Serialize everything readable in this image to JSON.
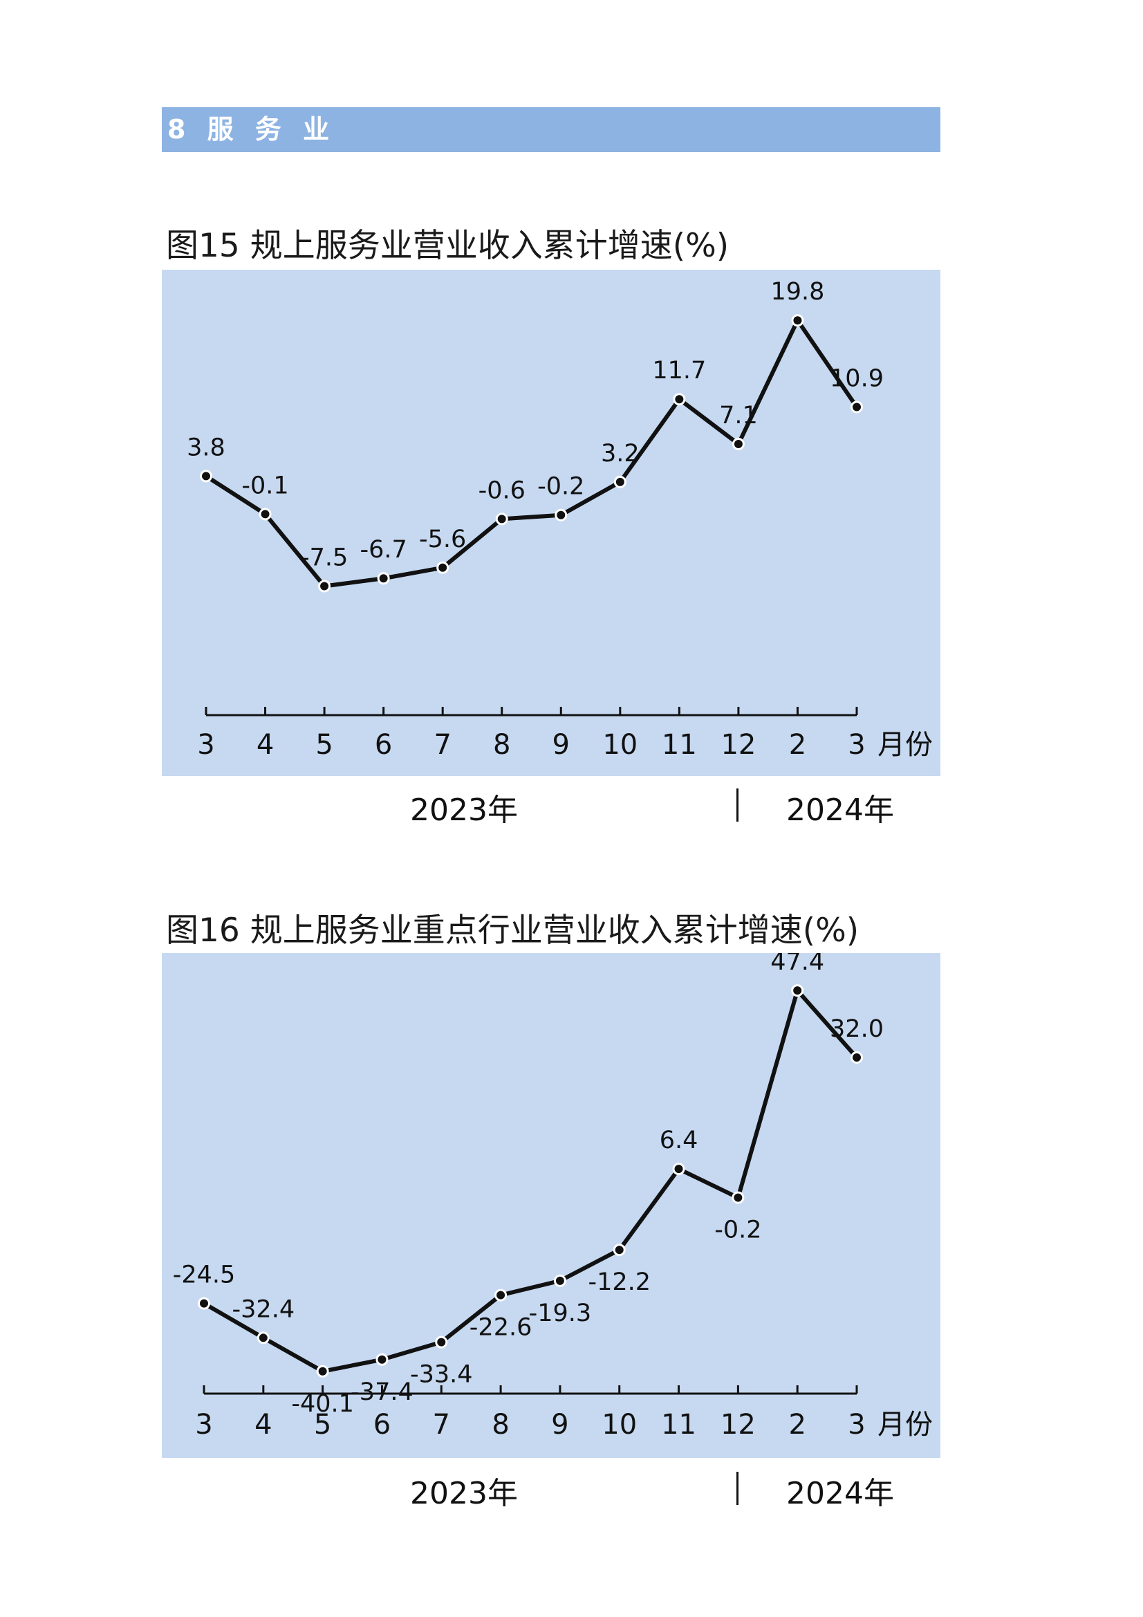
{
  "section": {
    "label": "8  服 务 业"
  },
  "figures": [
    {
      "title": "图15  规上服务业营业收入累计增速(%)",
      "years": {
        "first": "2023年",
        "second": "2024年"
      }
    },
    {
      "title": "图16  规上服务业重点行业营业收入累计增速(%)",
      "years": {
        "first": "2023年",
        "second": "2024年"
      }
    }
  ],
  "chart_data": [
    {
      "type": "line",
      "title": "图15  规上服务业营业收入累计增速(%)",
      "categories": [
        "3",
        "4",
        "5",
        "6",
        "7",
        "8",
        "9",
        "10",
        "11",
        "12",
        "2",
        "3"
      ],
      "x_unit": "月份",
      "values": [
        3.8,
        -0.1,
        -7.5,
        -6.7,
        -5.6,
        -0.6,
        -0.2,
        3.2,
        11.7,
        7.1,
        19.8,
        10.9
      ],
      "value_labels": [
        "3.8",
        "-0.1",
        "-7.5",
        "-6.7",
        "-5.6",
        "-0.6",
        "-0.2",
        "3.2",
        "11.7",
        "7.1",
        "19.8",
        "10.9"
      ],
      "label_position": [
        "above",
        "above",
        "above",
        "above",
        "above",
        "above",
        "above",
        "above",
        "above",
        "above",
        "above",
        "above"
      ],
      "ylim": [
        -27,
        25
      ],
      "grid": false,
      "legend": "none",
      "background_color": "#c6d9f1",
      "line_color": "#111111"
    },
    {
      "type": "line",
      "title": "图16  规上服务业重点行业营业收入累计增速(%)",
      "categories": [
        "3",
        "4",
        "5",
        "6",
        "7",
        "8",
        "9",
        "10",
        "11",
        "12",
        "2",
        "3"
      ],
      "x_unit": "月份",
      "values": [
        -24.5,
        -32.4,
        -40.1,
        -37.4,
        -33.4,
        -22.6,
        -19.3,
        -12.2,
        6.4,
        -0.2,
        47.4,
        32.0
      ],
      "value_labels": [
        "-24.5",
        "-32.4",
        "-40.1",
        "-37.4",
        "-33.4",
        "-22.6",
        "-19.3",
        "-12.2",
        "6.4",
        "-0.2",
        "47.4",
        "32.0"
      ],
      "label_position": [
        "above",
        "above",
        "below",
        "below",
        "below",
        "below",
        "below",
        "below",
        "above",
        "below",
        "above",
        "above"
      ],
      "ylim": [
        -60,
        56
      ],
      "grid": false,
      "legend": "none",
      "background_color": "#c6d9f1",
      "line_color": "#111111"
    }
  ]
}
